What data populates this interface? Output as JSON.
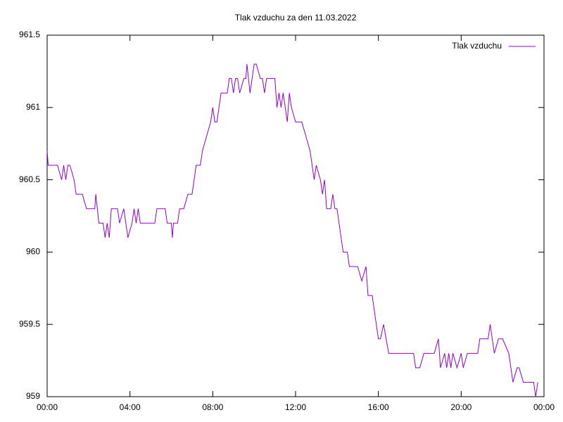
{
  "chart_data": {
    "type": "line",
    "title": "Tlak vzduchu za den 11.03.2022",
    "x": [
      0,
      0.05,
      0.5,
      0.7,
      0.8,
      0.9,
      1.0,
      1.1,
      1.3,
      1.4,
      1.7,
      1.9,
      2.3,
      2.35,
      2.5,
      2.7,
      2.8,
      2.9,
      3.0,
      3.1,
      3.4,
      3.5,
      3.7,
      3.9,
      4.1,
      4.2,
      4.3,
      4.4,
      4.5,
      5.2,
      5.3,
      5.7,
      5.8,
      6.0,
      6.05,
      6.1,
      6.3,
      6.4,
      6.6,
      6.8,
      7.0,
      7.1,
      7.2,
      7.4,
      7.5,
      7.7,
      7.9,
      8.0,
      8.1,
      8.2,
      8.3,
      8.4,
      8.7,
      8.8,
      8.9,
      9.0,
      9.1,
      9.2,
      9.3,
      9.5,
      9.6,
      9.65,
      9.8,
      9.9,
      10.0,
      10.1,
      10.3,
      10.4,
      10.5,
      10.6,
      10.8,
      11.0,
      11.1,
      11.2,
      11.3,
      11.4,
      11.5,
      11.6,
      11.7,
      11.8,
      12.0,
      12.3,
      12.5,
      12.7,
      12.9,
      13.0,
      13.2,
      13.3,
      13.4,
      13.5,
      13.7,
      13.8,
      13.9,
      14.0,
      14.2,
      14.3,
      14.5,
      14.6,
      15.0,
      15.2,
      15.4,
      15.5,
      15.7,
      15.8,
      16.0,
      16.1,
      16.25,
      16.5,
      17.0,
      17.4,
      17.7,
      17.8,
      18.0,
      18.2,
      18.7,
      18.9,
      19.0,
      19.2,
      19.3,
      19.4,
      19.5,
      19.6,
      19.8,
      20.0,
      20.1,
      20.3,
      20.8,
      20.9,
      21.3,
      21.4,
      21.6,
      21.8,
      22.0,
      22.3,
      22.5,
      22.7,
      22.8,
      23.0,
      23.5,
      23.6,
      23.7
    ],
    "series": [
      {
        "name": "Tlak vzduchu",
        "color": "#9400d3",
        "values": [
          960.7,
          960.6,
          960.6,
          960.5,
          960.6,
          960.5,
          960.6,
          960.6,
          960.5,
          960.4,
          960.4,
          960.3,
          960.3,
          960.4,
          960.2,
          960.2,
          960.1,
          960.2,
          960.1,
          960.3,
          960.3,
          960.2,
          960.3,
          960.1,
          960.2,
          960.3,
          960.2,
          960.3,
          960.2,
          960.2,
          960.3,
          960.3,
          960.2,
          960.2,
          960.1,
          960.2,
          960.2,
          960.3,
          960.3,
          960.4,
          960.4,
          960.5,
          960.6,
          960.6,
          960.7,
          960.8,
          960.9,
          961.0,
          960.9,
          960.9,
          961.0,
          961.1,
          961.1,
          961.2,
          961.2,
          961.1,
          961.2,
          961.2,
          961.1,
          961.2,
          961.2,
          961.3,
          961.1,
          961.2,
          961.3,
          961.3,
          961.2,
          961.2,
          961.1,
          961.2,
          961.2,
          961.2,
          961.0,
          961.1,
          961.0,
          961.1,
          961.0,
          960.9,
          961.1,
          961.0,
          960.9,
          960.9,
          960.8,
          960.7,
          960.5,
          960.6,
          960.5,
          960.4,
          960.5,
          960.3,
          960.3,
          960.4,
          960.3,
          960.3,
          960.1,
          960.0,
          960.0,
          959.9,
          959.9,
          959.8,
          959.9,
          959.7,
          959.7,
          959.6,
          959.4,
          959.4,
          959.5,
          959.3,
          959.3,
          959.3,
          959.3,
          959.2,
          959.2,
          959.3,
          959.3,
          959.4,
          959.2,
          959.3,
          959.2,
          959.3,
          959.2,
          959.3,
          959.2,
          959.3,
          959.2,
          959.3,
          959.3,
          959.4,
          959.4,
          959.5,
          959.3,
          959.4,
          959.4,
          959.3,
          959.1,
          959.2,
          959.2,
          959.1,
          959.1,
          959.0,
          959.1
        ]
      }
    ],
    "xlim": [
      0,
      24
    ],
    "xticks": [
      {
        "value": 0,
        "label": "00:00"
      },
      {
        "value": 4,
        "label": "04:00"
      },
      {
        "value": 8,
        "label": "08:00"
      },
      {
        "value": 12,
        "label": "12:00"
      },
      {
        "value": 16,
        "label": "16:00"
      },
      {
        "value": 20,
        "label": "20:00"
      },
      {
        "value": 24,
        "label": "00:00"
      }
    ],
    "ylim": [
      959,
      961.5
    ],
    "yticks": [
      959,
      959.5,
      960,
      960.5,
      961,
      961.5
    ],
    "grid": false,
    "legend": "top-right"
  }
}
